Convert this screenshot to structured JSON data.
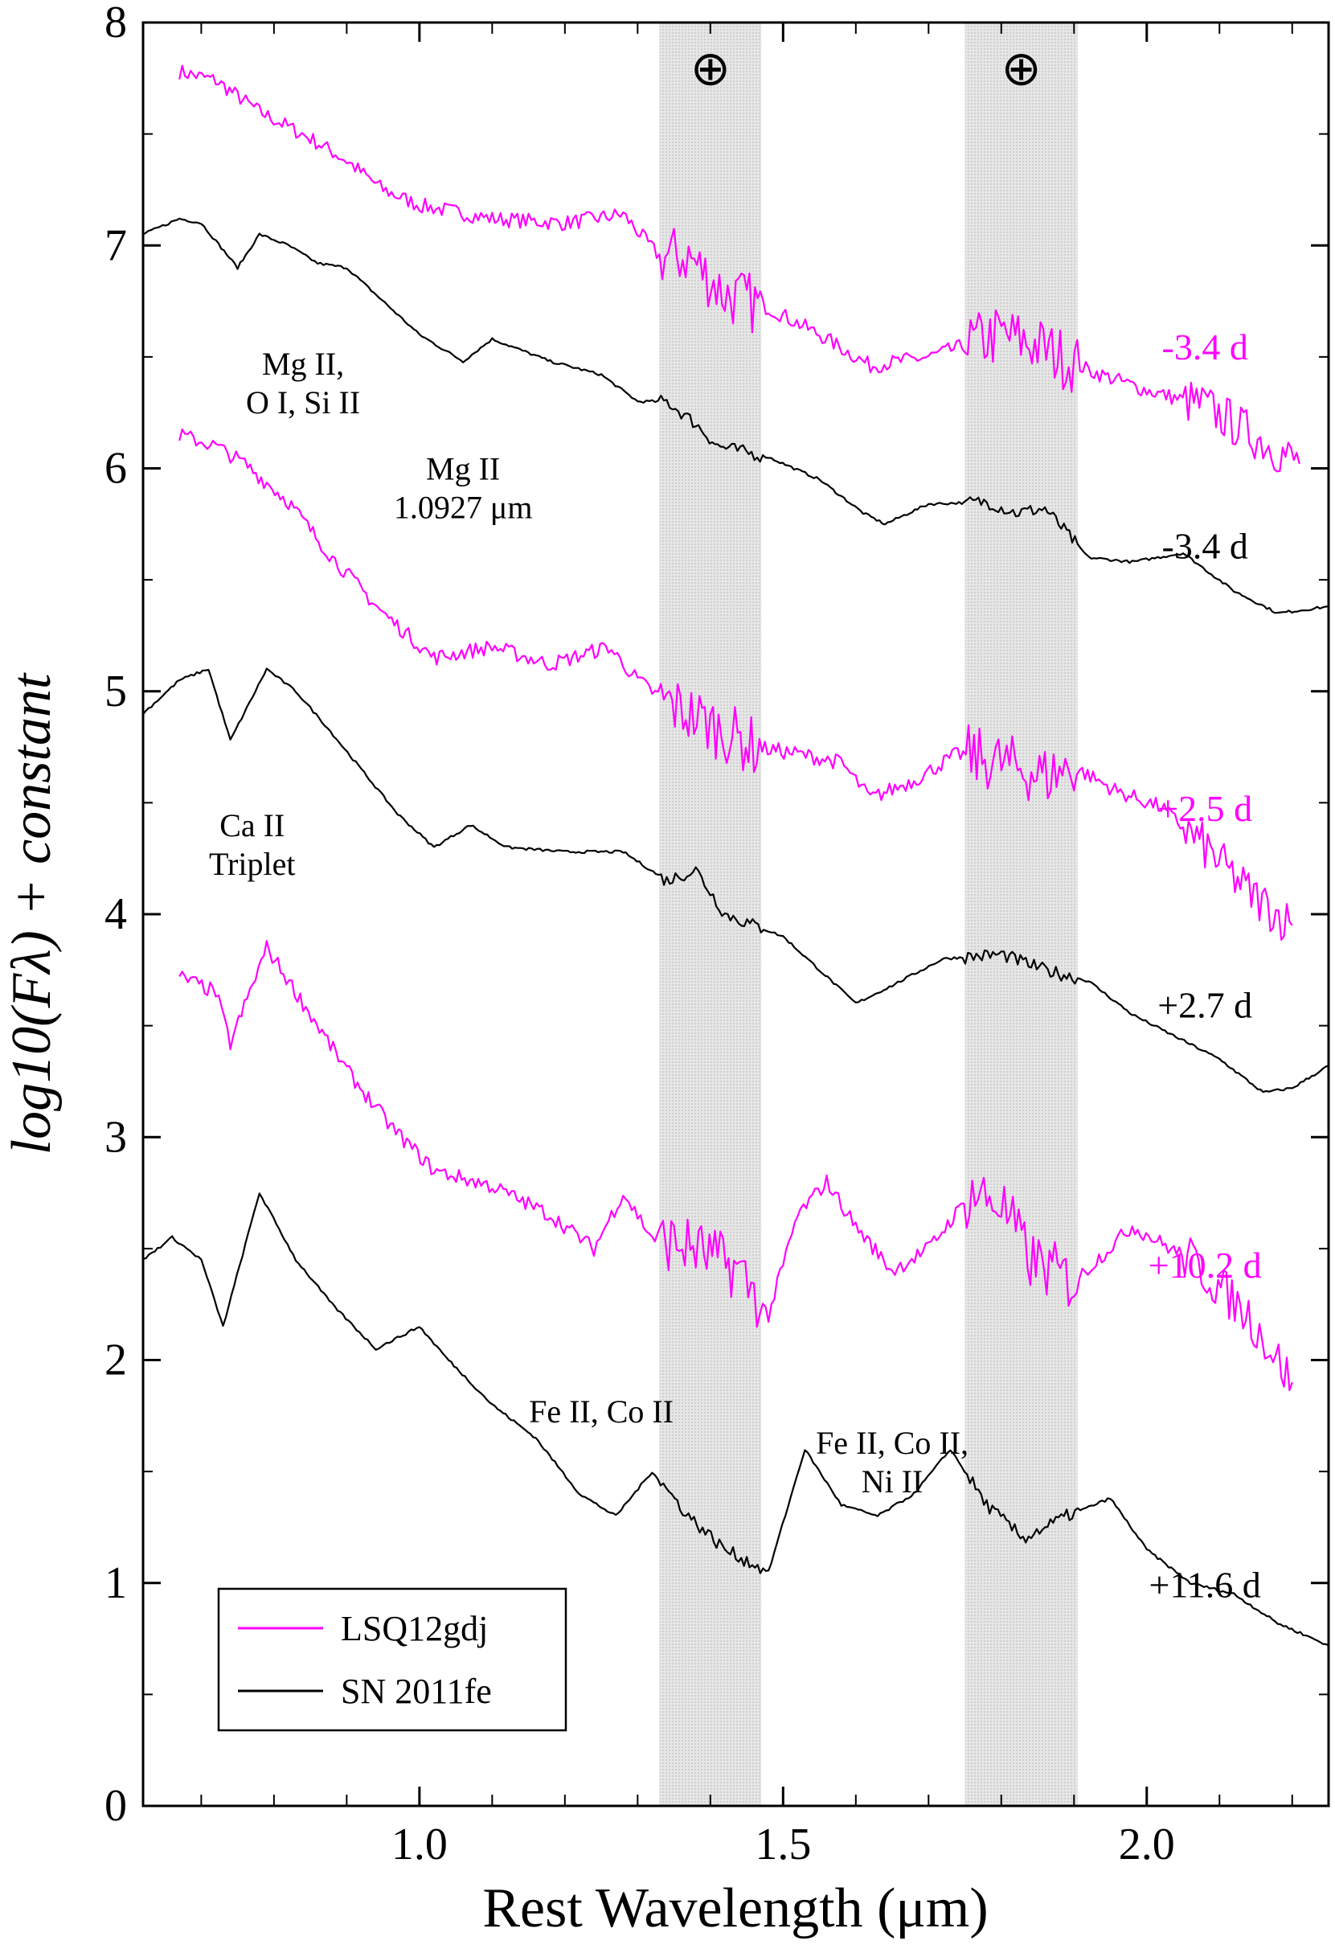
{
  "chart_data": {
    "type": "line",
    "title": "",
    "xlabel": "Rest Wavelength (μm)",
    "ylabel": "log10(Fλ) + constant",
    "xlim": [
      0.62,
      2.25
    ],
    "ylim": [
      0,
      8
    ],
    "x_ticks": [
      1.0,
      1.5,
      2.0
    ],
    "x_tick_labels": [
      "1.0",
      "1.5",
      "2.0"
    ],
    "y_ticks": [
      0,
      1,
      2,
      3,
      4,
      5,
      6,
      7,
      8
    ],
    "y_tick_labels": [
      "0",
      "1",
      "2",
      "3",
      "4",
      "5",
      "6",
      "7",
      "8"
    ],
    "telluric_bands": [
      {
        "x0": 1.33,
        "x1": 1.47,
        "symbol": "⊕"
      },
      {
        "x0": 1.75,
        "x1": 1.905,
        "symbol": "⊕"
      }
    ],
    "colors": {
      "LSQ12gdj": "#ff00ff",
      "SN 2011fe": "#000000",
      "band": "#dcdcdc"
    },
    "legend": {
      "position": "bottom-left",
      "entries": [
        {
          "name": "LSQ12gdj",
          "color": "#ff00ff"
        },
        {
          "name": "SN 2011fe",
          "color": "#000000"
        }
      ]
    },
    "series": [
      {
        "name": "LSQ12gdj",
        "epoch": "-3.4 d",
        "color": "#ff00ff",
        "x": [
          0.67,
          0.72,
          0.78,
          0.85,
          0.9,
          0.95,
          1.0,
          1.1,
          1.2,
          1.28,
          1.33,
          1.37,
          1.42,
          1.48,
          1.55,
          1.62,
          1.7,
          1.75,
          1.8,
          1.85,
          1.92,
          2.0,
          2.08,
          2.16,
          2.21
        ],
        "y": [
          7.78,
          7.74,
          7.6,
          7.48,
          7.38,
          7.25,
          7.18,
          7.12,
          7.1,
          7.14,
          6.95,
          6.95,
          6.78,
          6.72,
          6.6,
          6.46,
          6.5,
          6.55,
          6.6,
          6.55,
          6.44,
          6.35,
          6.28,
          6.12,
          6.02
        ]
      },
      {
        "name": "SN 2011fe",
        "epoch": "-3.4 d",
        "color": "#000000",
        "x": [
          0.62,
          0.67,
          0.7,
          0.72,
          0.75,
          0.78,
          0.82,
          0.86,
          0.9,
          0.96,
          1.0,
          1.06,
          1.1,
          1.18,
          1.25,
          1.3,
          1.34,
          1.38,
          1.41,
          1.48,
          1.55,
          1.61,
          1.64,
          1.7,
          1.78,
          1.82,
          1.86,
          1.92,
          1.98,
          2.05,
          2.12,
          2.18,
          2.25
        ],
        "y": [
          7.05,
          7.12,
          7.1,
          7.02,
          6.9,
          7.05,
          7.0,
          6.92,
          6.9,
          6.72,
          6.6,
          6.48,
          6.58,
          6.48,
          6.42,
          6.3,
          6.3,
          6.2,
          6.1,
          6.05,
          5.95,
          5.8,
          5.75,
          5.84,
          5.85,
          5.8,
          5.82,
          5.6,
          5.58,
          5.62,
          5.45,
          5.35,
          5.38
        ]
      },
      {
        "name": "LSQ12gdj",
        "epoch": "+2.5 d",
        "color": "#ff00ff",
        "x": [
          0.67,
          0.72,
          0.76,
          0.82,
          0.88,
          0.95,
          1.02,
          1.1,
          1.18,
          1.26,
          1.3,
          1.34,
          1.4,
          1.46,
          1.52,
          1.58,
          1.62,
          1.68,
          1.74,
          1.8,
          1.86,
          1.9,
          1.96,
          2.02,
          2.08,
          2.14,
          2.2
        ],
        "y": [
          6.15,
          6.1,
          6.02,
          5.85,
          5.6,
          5.35,
          5.15,
          5.2,
          5.12,
          5.2,
          5.05,
          4.95,
          4.85,
          4.75,
          4.72,
          4.68,
          4.52,
          4.6,
          4.72,
          4.68,
          4.62,
          4.66,
          4.55,
          4.48,
          4.3,
          4.1,
          3.95
        ]
      },
      {
        "name": "SN 2011fe",
        "epoch": "+2.7 d",
        "color": "#000000",
        "x": [
          0.62,
          0.67,
          0.71,
          0.74,
          0.79,
          0.83,
          0.87,
          0.92,
          0.97,
          1.02,
          1.07,
          1.12,
          1.2,
          1.28,
          1.34,
          1.38,
          1.42,
          1.5,
          1.55,
          1.6,
          1.65,
          1.72,
          1.8,
          1.86,
          1.92,
          1.98,
          2.04,
          2.1,
          2.16,
          2.2,
          2.25
        ],
        "y": [
          4.9,
          5.05,
          5.1,
          4.78,
          5.1,
          5.0,
          4.85,
          4.65,
          4.45,
          4.3,
          4.4,
          4.3,
          4.28,
          4.28,
          4.15,
          4.2,
          4.0,
          3.9,
          3.75,
          3.6,
          3.68,
          3.8,
          3.82,
          3.75,
          3.7,
          3.55,
          3.45,
          3.35,
          3.2,
          3.22,
          3.32
        ]
      },
      {
        "name": "LSQ12gdj",
        "epoch": "+10.2 d",
        "color": "#ff00ff",
        "x": [
          0.67,
          0.72,
          0.74,
          0.79,
          0.84,
          0.9,
          0.96,
          1.02,
          1.1,
          1.18,
          1.24,
          1.28,
          1.32,
          1.38,
          1.44,
          1.48,
          1.52,
          1.56,
          1.6,
          1.65,
          1.7,
          1.76,
          1.8,
          1.84,
          1.9,
          1.98,
          2.06,
          2.14,
          2.2
        ],
        "y": [
          3.72,
          3.65,
          3.42,
          3.85,
          3.6,
          3.3,
          3.05,
          2.85,
          2.78,
          2.65,
          2.5,
          2.75,
          2.55,
          2.5,
          2.4,
          2.2,
          2.65,
          2.8,
          2.6,
          2.4,
          2.5,
          2.75,
          2.7,
          2.45,
          2.35,
          2.6,
          2.45,
          2.2,
          1.9
        ]
      },
      {
        "name": "SN 2011fe",
        "epoch": "+11.6 d",
        "color": "#000000",
        "x": [
          0.62,
          0.66,
          0.7,
          0.73,
          0.78,
          0.83,
          0.88,
          0.94,
          1.0,
          1.04,
          1.1,
          1.16,
          1.22,
          1.27,
          1.32,
          1.37,
          1.42,
          1.48,
          1.53,
          1.58,
          1.63,
          1.68,
          1.73,
          1.78,
          1.83,
          1.89,
          1.95,
          2.0,
          2.06,
          2.12,
          2.18,
          2.25
        ],
        "y": [
          2.45,
          2.55,
          2.45,
          2.15,
          2.75,
          2.45,
          2.25,
          2.05,
          2.15,
          2.0,
          1.8,
          1.65,
          1.4,
          1.3,
          1.5,
          1.3,
          1.15,
          1.05,
          1.6,
          1.35,
          1.3,
          1.4,
          1.6,
          1.35,
          1.2,
          1.3,
          1.38,
          1.15,
          1.0,
          0.95,
          0.82,
          0.72
        ]
      }
    ],
    "annotations": [
      {
        "x": 0.84,
        "y": 6.42,
        "lines": [
          "Mg II,",
          "O I, Si II"
        ]
      },
      {
        "x": 1.06,
        "y": 5.95,
        "lines": [
          "Mg II",
          "1.0927 μm"
        ]
      },
      {
        "x": 0.77,
        "y": 4.35,
        "lines": [
          "Ca II",
          "Triplet"
        ]
      },
      {
        "x": 1.25,
        "y": 1.72,
        "lines": [
          "Fe II, Co II"
        ]
      },
      {
        "x": 1.65,
        "y": 1.58,
        "lines": [
          "Fe II, Co II,",
          "Ni II"
        ]
      }
    ]
  }
}
